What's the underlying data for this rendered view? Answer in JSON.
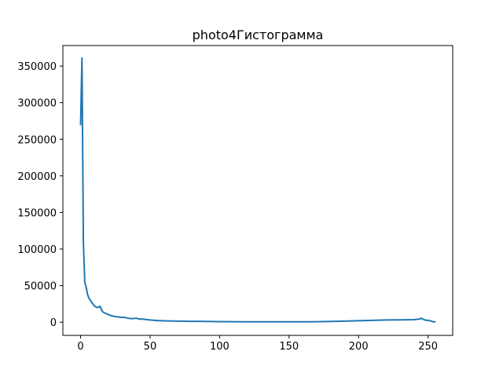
{
  "chart_data": {
    "type": "line",
    "title": "photo4Гистограмма",
    "xlabel": "",
    "ylabel": "",
    "xlim": [
      -12.75,
      267.75
    ],
    "ylim": [
      -18000,
      378000
    ],
    "x_ticks": [
      0,
      50,
      100,
      150,
      200,
      250
    ],
    "y_ticks": [
      0,
      50000,
      100000,
      150000,
      200000,
      250000,
      300000,
      350000
    ],
    "x_tick_labels": [
      "0",
      "50",
      "100",
      "150",
      "200",
      "250"
    ],
    "y_tick_labels": [
      "0",
      "50000",
      "100000",
      "150000",
      "200000",
      "250000",
      "300000",
      "350000"
    ],
    "grid": false,
    "legend": "none",
    "series": [
      {
        "color": "#1f77b4",
        "x": [
          0,
          1,
          2,
          3,
          4,
          5,
          6,
          7,
          8,
          9,
          10,
          11,
          12,
          13,
          14,
          15,
          16,
          18,
          20,
          22,
          24,
          26,
          28,
          30,
          32,
          34,
          36,
          38,
          40,
          42,
          44,
          46,
          48,
          50,
          55,
          60,
          70,
          80,
          90,
          100,
          110,
          120,
          130,
          140,
          150,
          160,
          170,
          180,
          190,
          200,
          210,
          220,
          230,
          240,
          242,
          244,
          245,
          246,
          248,
          250,
          252,
          254,
          255
        ],
        "y": [
          270000,
          361000,
          110000,
          55000,
          48000,
          38000,
          33000,
          30000,
          27000,
          24500,
          22000,
          21000,
          20000,
          20500,
          22000,
          17000,
          14000,
          12000,
          10500,
          9000,
          8000,
          7500,
          7000,
          6500,
          6500,
          5500,
          5000,
          5000,
          5500,
          4500,
          4200,
          4000,
          3500,
          3000,
          2200,
          1800,
          1400,
          1200,
          1100,
          800,
          600,
          500,
          500,
          500,
          500,
          500,
          700,
          1000,
          1400,
          2000,
          2500,
          3000,
          3200,
          3500,
          4000,
          4200,
          5500,
          4500,
          2800,
          2500,
          1800,
          500,
          500
        ]
      }
    ]
  }
}
